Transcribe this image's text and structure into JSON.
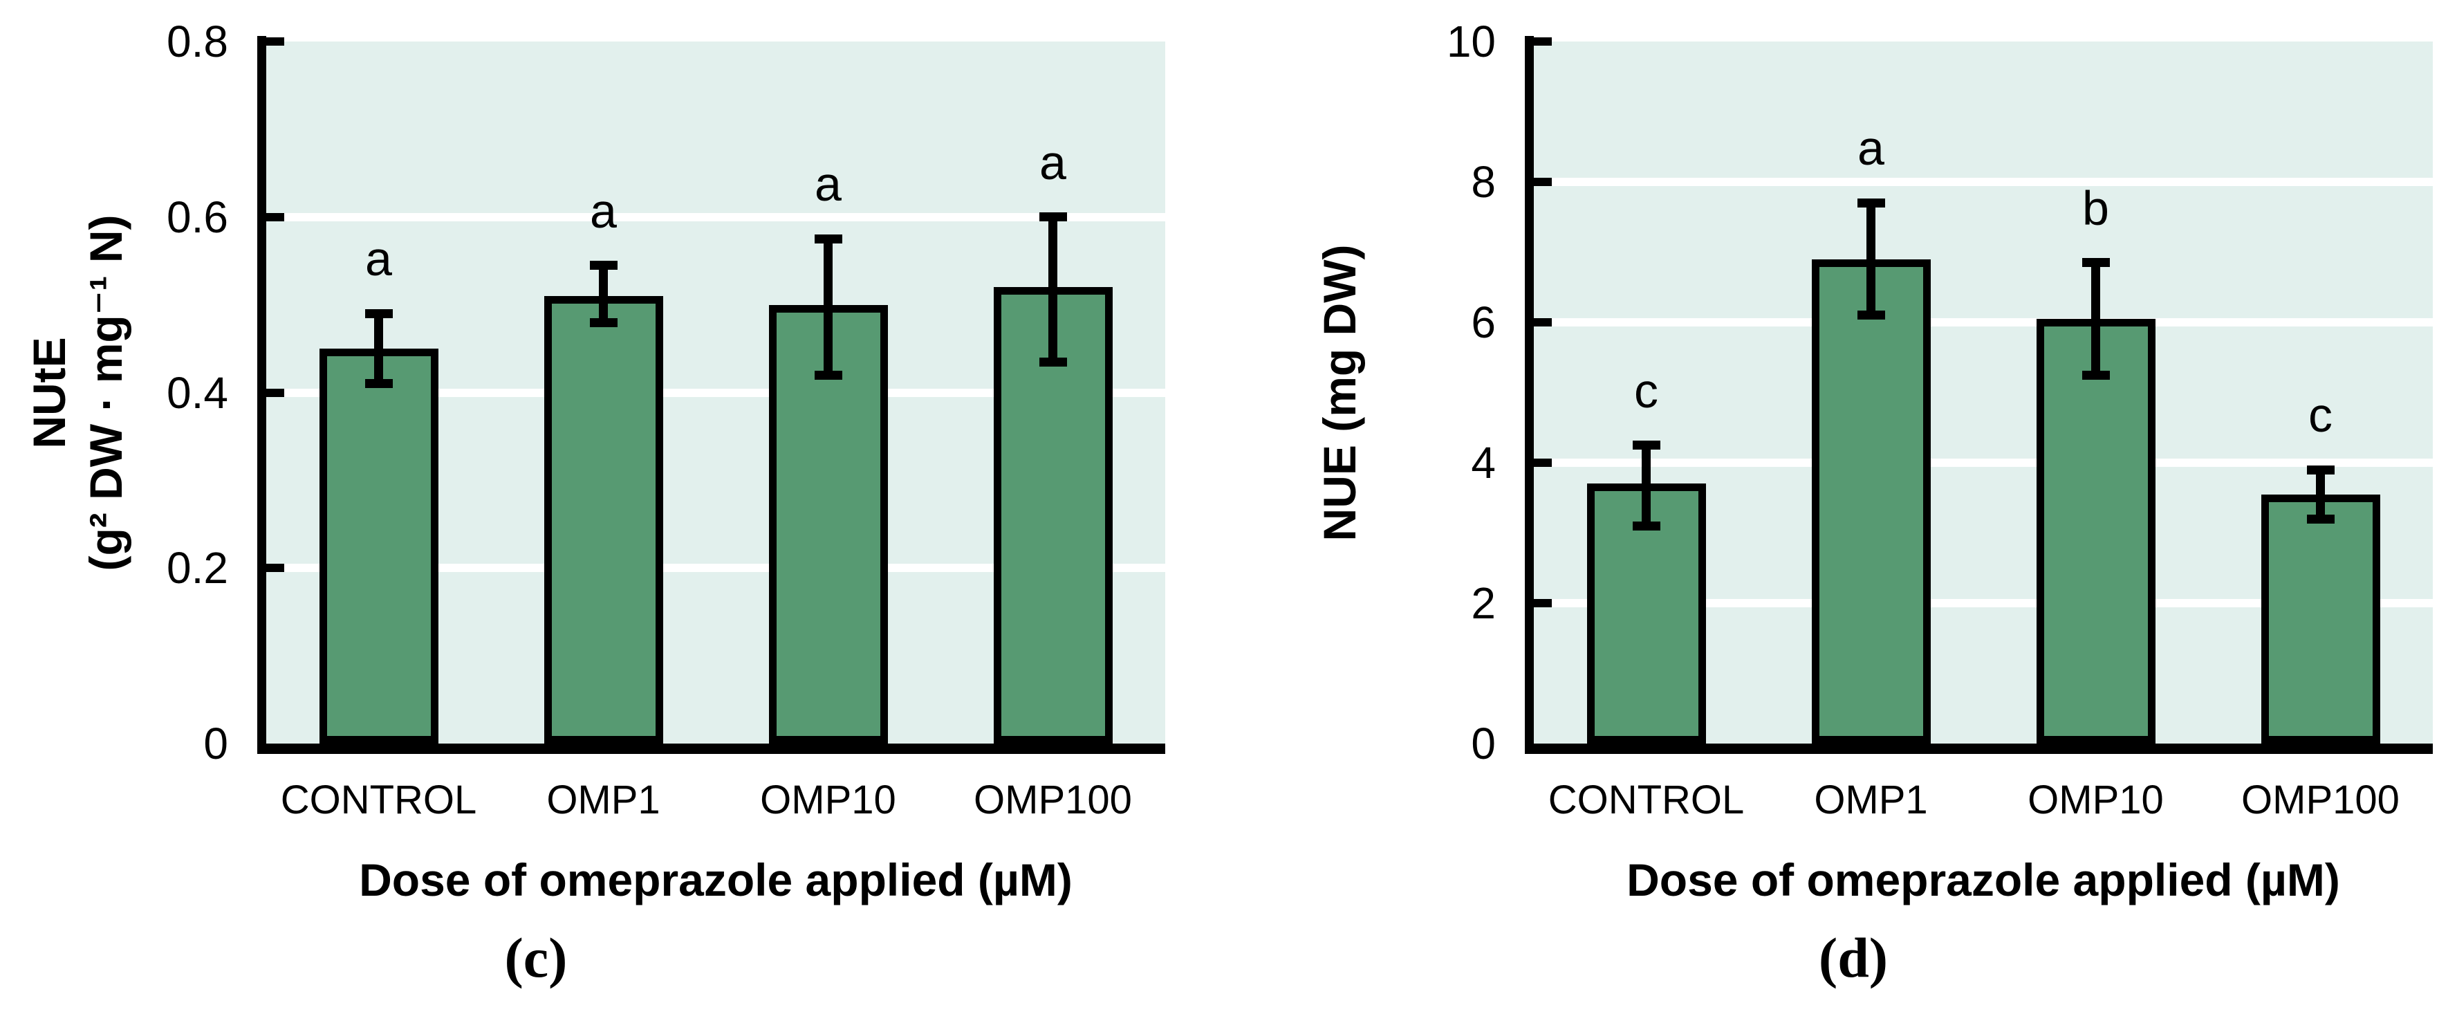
{
  "figure": {
    "background": "#ffffff",
    "bar_fill": "#579a72",
    "bar_border": "#000000",
    "plot_bg": "#e2f0ed",
    "gridline_color": "#ffffff",
    "axis_color": "#000000",
    "text_color": "#000000"
  },
  "chart_data": [
    {
      "type": "bar",
      "panel_label": "(c)",
      "ylabel_lines": [
        "NUtE",
        "(g² DW · mg⁻¹ N)"
      ],
      "xlabel": "Dose of omeprazole applied (µM)",
      "categories": [
        "CONTROL",
        "OMP1",
        "OMP10",
        "OMP100"
      ],
      "values": [
        0.45,
        0.51,
        0.5,
        0.52
      ],
      "error_low": [
        0.41,
        0.48,
        0.42,
        0.435
      ],
      "error_high": [
        0.49,
        0.545,
        0.575,
        0.6
      ],
      "sig_letters": [
        "a",
        "a",
        "a",
        "a"
      ],
      "ylim": [
        0,
        0.8
      ],
      "yticks": [
        0,
        0.2,
        0.4,
        0.6,
        0.8
      ],
      "ytick_labels": [
        "0",
        "0.2",
        "0.4",
        "0.6",
        "0.8"
      ],
      "grid": true,
      "legend": null
    },
    {
      "type": "bar",
      "panel_label": "(d)",
      "ylabel_lines": [
        "NUE (mg DW)"
      ],
      "xlabel": "Dose of omeprazole applied (µM)",
      "categories": [
        "CONTROL",
        "OMP1",
        "OMP10",
        "OMP100"
      ],
      "values": [
        3.7,
        6.9,
        6.05,
        3.55
      ],
      "error_low": [
        3.1,
        6.1,
        5.25,
        3.2
      ],
      "error_high": [
        4.25,
        7.7,
        6.85,
        3.9
      ],
      "sig_letters": [
        "c",
        "a",
        "b",
        "c"
      ],
      "ylim": [
        0,
        10
      ],
      "yticks": [
        0,
        2,
        4,
        6,
        8,
        10
      ],
      "ytick_labels": [
        "0",
        "2",
        "4",
        "6",
        "8",
        "10"
      ],
      "grid": true,
      "legend": null
    }
  ]
}
